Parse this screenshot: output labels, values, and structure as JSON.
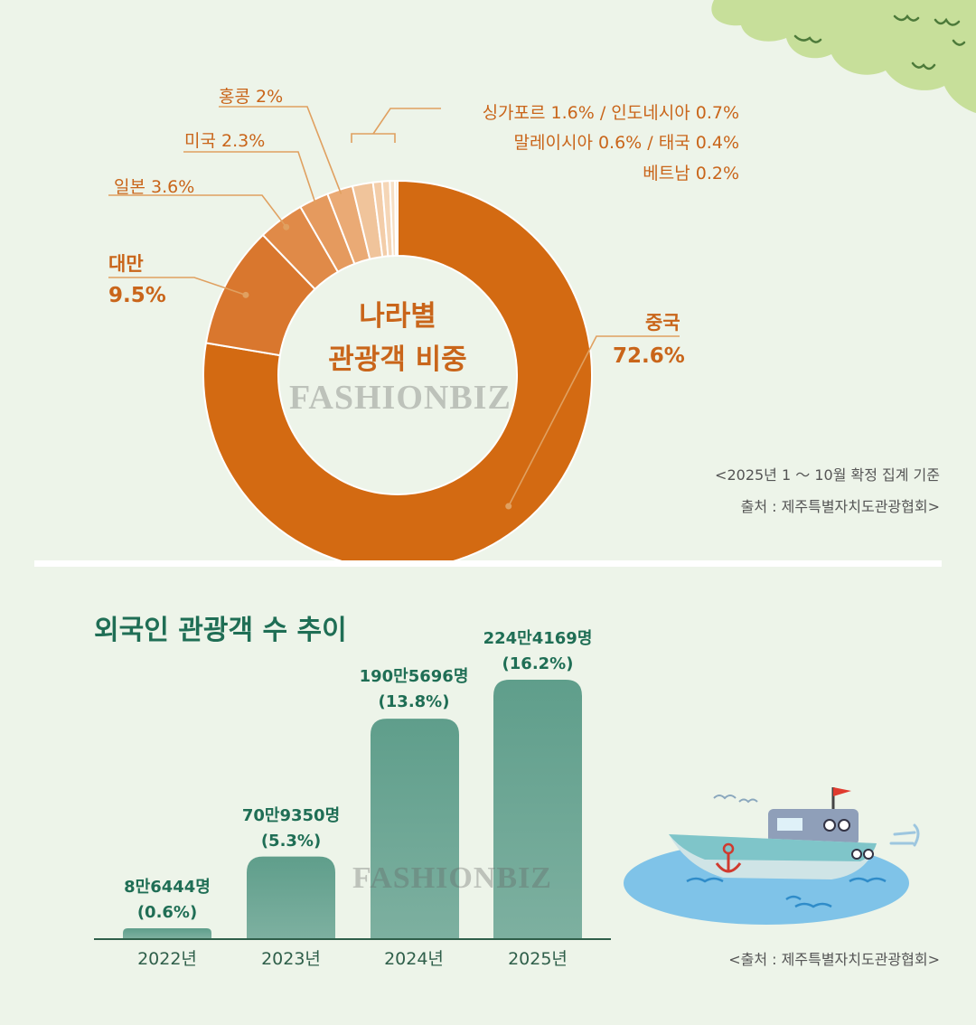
{
  "colors": {
    "background": "#edf4e9",
    "accent_orange": "#c9651a",
    "donut_main": "#d36a12",
    "bar_green": "#6aa593",
    "title_green": "#1f6e55"
  },
  "donut": {
    "center_line1": "나라별",
    "center_line2": "관광객 비중",
    "note_line1": "<2025년 1 ～ 10월 확정 집계 기준",
    "note_line2": "출처 : 제주특별자치도관광협회>",
    "labels": {
      "china_name": "중국",
      "china_pct": "72.6%",
      "taiwan_name": "대만",
      "taiwan_pct": "9.5%",
      "japan": "일본 3.6%",
      "usa": "미국 2.3%",
      "hongkong": "홍콩 2%",
      "small1": "싱가포르 1.6% / 인도네시아 0.7%",
      "small2": "말레이시아 0.6% / 태국 0.4%",
      "small3": "베트남 0.2%"
    }
  },
  "trend": {
    "title": "외국인 관광객 수 추이",
    "source": "<출처 : 제주특별자치도관광협회>",
    "bars": [
      {
        "line1": "8만6444명",
        "line2": "(0.6%)",
        "year": "2022년"
      },
      {
        "line1": "70만9350명",
        "line2": "(5.3%)",
        "year": "2023년"
      },
      {
        "line1": "190만5696명",
        "line2": "(13.8%)",
        "year": "2024년"
      },
      {
        "line1": "224만4169명",
        "line2": "(16.2%)",
        "year": "2025년"
      }
    ]
  },
  "watermark": "FASHIONBIZ",
  "chart_data": [
    {
      "type": "pie",
      "title": "나라별 관광객 비중",
      "categories": [
        "중국",
        "대만",
        "일본",
        "미국",
        "홍콩",
        "싱가포르",
        "인도네시아",
        "말레이시아",
        "태국",
        "베트남"
      ],
      "values": [
        72.6,
        9.5,
        3.6,
        2.3,
        2.0,
        1.6,
        0.7,
        0.6,
        0.4,
        0.2
      ],
      "colors": [
        "#d36a12",
        "#d9772e",
        "#e08a48",
        "#e59a5e",
        "#eaaa75",
        "#f0c49b",
        "#f3cda9",
        "#f5d6b7",
        "#f7dfc5",
        "#f9e7d3"
      ]
    },
    {
      "type": "bar",
      "title": "외국인 관광객 수 추이",
      "categories": [
        "2022년",
        "2023년",
        "2024년",
        "2025년"
      ],
      "values": [
        86444,
        709350,
        1905696,
        2244169
      ],
      "ylim": [
        0,
        2244169
      ]
    }
  ]
}
